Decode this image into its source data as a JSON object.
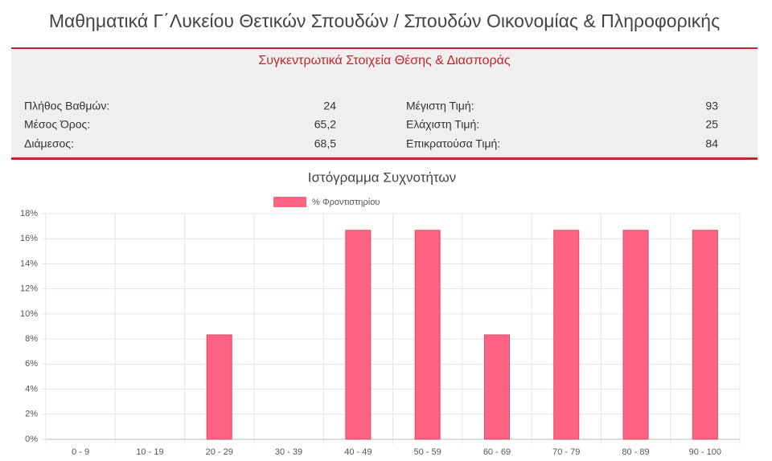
{
  "header": {
    "title": "Μαθηματικά Γ΄Λυκείου Θετικών Σπουδών / Σπουδών Οικονομίας & Πληροφορικής"
  },
  "stats": {
    "title": "Συγκεντρωτικά Στοιχεία Θέσης & Διασποράς",
    "left": [
      {
        "label": "Πλήθος Βαθμών:",
        "value": "24"
      },
      {
        "label": "Μέσος Όρος:",
        "value": "65,2"
      },
      {
        "label": "Διάμεσος:",
        "value": "68,5"
      }
    ],
    "right": [
      {
        "label": "Μέγιστη Τιμή:",
        "value": "93"
      },
      {
        "label": "Ελάχιστη Τιμή:",
        "value": "25"
      },
      {
        "label": "Επικρατούσα Τιμή:",
        "value": "84"
      }
    ]
  },
  "chart_data": {
    "type": "bar",
    "title": "Ιστόγραμμα Συχνοτήτων",
    "categories": [
      "0 - 9",
      "10 - 19",
      "20 - 29",
      "30 - 39",
      "40 - 49",
      "50 - 59",
      "60 - 69",
      "70 - 79",
      "80 - 89",
      "90 - 100"
    ],
    "series": [
      {
        "name": "% Φροντιστηρίου",
        "color": "#ff6384",
        "values": [
          0,
          0,
          8.33,
          0,
          16.67,
          16.67,
          8.33,
          16.67,
          16.67,
          16.67
        ]
      }
    ],
    "ylim": [
      0,
      18
    ],
    "yticks": [
      {
        "value": 0,
        "label": "0%"
      },
      {
        "value": 2,
        "label": "2%"
      },
      {
        "value": 4,
        "label": "4%"
      },
      {
        "value": 6,
        "label": "6%"
      },
      {
        "value": 8,
        "label": "8%"
      },
      {
        "value": 10,
        "label": "10%"
      },
      {
        "value": 12,
        "label": "12%"
      },
      {
        "value": 14,
        "label": "14%"
      },
      {
        "value": 16,
        "label": "16%"
      },
      {
        "value": 18,
        "label": "18%"
      }
    ],
    "grid": true,
    "legend": "top"
  }
}
